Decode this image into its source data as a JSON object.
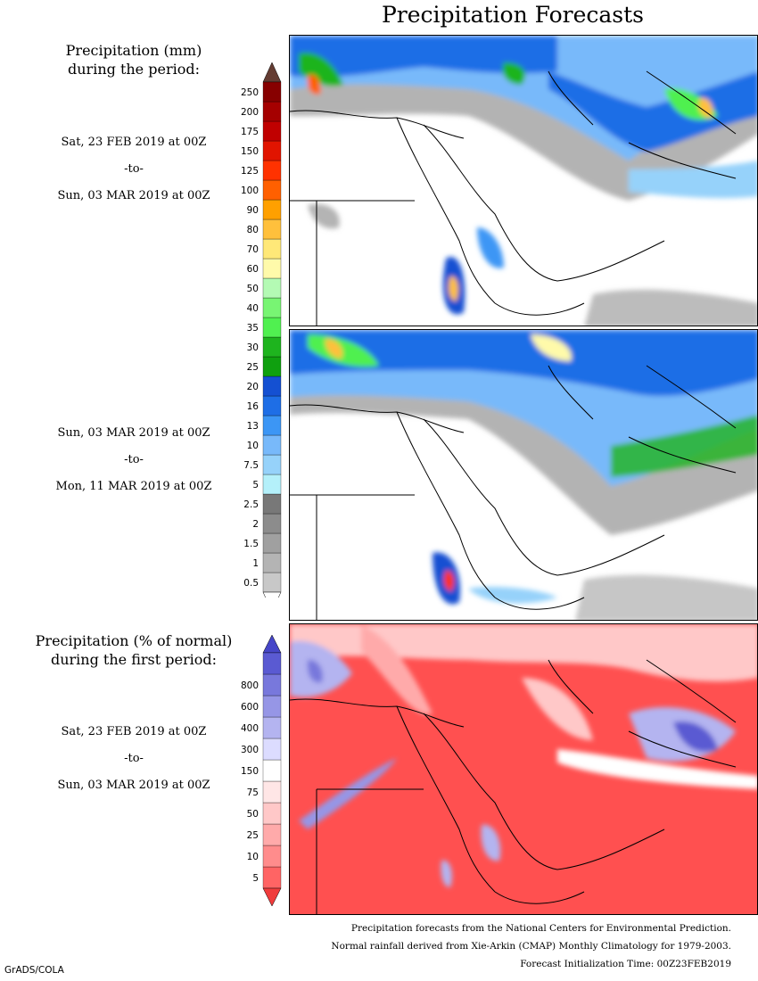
{
  "title": "Precipitation Forecasts",
  "amount_legend": {
    "heading_line1": "Precipitation (mm)",
    "heading_line2": "during the period:",
    "levels": [
      "0.5",
      "1",
      "1.5",
      "2",
      "2.5",
      "5",
      "7.5",
      "10",
      "13",
      "16",
      "20",
      "25",
      "30",
      "35",
      "40",
      "50",
      "60",
      "70",
      "80",
      "90",
      "100",
      "125",
      "150",
      "175",
      "200",
      "250"
    ],
    "colors": [
      "#c8c8c8",
      "#b4b4b4",
      "#a0a0a0",
      "#8c8c8c",
      "#787878",
      "#b4f0fa",
      "#96d2fa",
      "#78b9fa",
      "#3c96f5",
      "#1e6ee6",
      "#1450d2",
      "#0fa00f",
      "#1eb41e",
      "#50f050",
      "#78f573",
      "#b4fab4",
      "#fffaaa",
      "#ffe878",
      "#ffc03c",
      "#ffa000",
      "#ff6000",
      "#ff3200",
      "#e11400",
      "#c00000",
      "#a50000",
      "#870000"
    ],
    "top_arrow_color": "#643c32",
    "bottom_arrow_color": "#ffffff"
  },
  "periods": [
    {
      "start": "Sat, 23 FEB 2019 at 00Z",
      "sep": "-to-",
      "end": "Sun, 03 MAR 2019 at 00Z"
    },
    {
      "start": "Sun, 03 MAR 2019 at 00Z",
      "sep": "-to-",
      "end": "Mon, 11 MAR 2019 at 00Z"
    }
  ],
  "percent_legend": {
    "heading_line1": "Precipitation (% of normal)",
    "heading_line2": "during the first period:",
    "levels": [
      "5",
      "10",
      "25",
      "50",
      "75",
      "150",
      "300",
      "400",
      "600",
      "800"
    ],
    "colors": [
      "#ff6464",
      "#ff8c8c",
      "#ffaaaa",
      "#ffc8c8",
      "#ffe6e6",
      "#ffffff",
      "#dcdcff",
      "#b4b4f0",
      "#9696e6",
      "#7878dc",
      "#5a5ad2"
    ],
    "top_arrow_color": "#4646c8",
    "bottom_arrow_color": "#f03c3c",
    "period": {
      "start": "Sat, 23 FEB 2019 at 00Z",
      "sep": "-to-",
      "end": "Sun, 03 MAR 2019 at 00Z"
    }
  },
  "footer": {
    "line1": "Precipitation forecasts from the National Centers for Environmental Prediction.",
    "line2": "Normal rainfall derived from Xie-Arkin (CMAP) Monthly Climatology for 1979-2003.",
    "line3": "Forecast Initialization Time: 00Z23FEB2019"
  },
  "credit": "GrADS/COLA"
}
